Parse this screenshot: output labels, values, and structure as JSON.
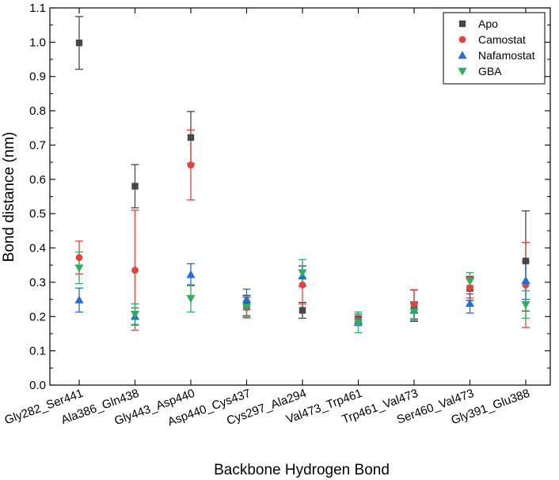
{
  "chart_data": {
    "type": "scatter",
    "title": "",
    "xlabel": "Backbone Hydrogen Bond",
    "ylabel": "Bond distance (nm)",
    "ylim": [
      0.0,
      1.1
    ],
    "yticks": [
      "0.0",
      "0.1",
      "0.2",
      "0.3",
      "0.4",
      "0.5",
      "0.6",
      "0.7",
      "0.8",
      "0.9",
      "1.0",
      "1.1"
    ],
    "categories": [
      "Gly282_Ser441",
      "Ala386_Gln438",
      "Gly443_Asp440",
      "Asp440_Cys437",
      "Cys297_Ala294",
      "Val473_Trp461",
      "Trp461_Val473",
      "Ser460_Val473",
      "Gly391_Glu388"
    ],
    "legend_position": "top-right",
    "series": [
      {
        "name": "Apo",
        "marker": "square",
        "color": "#474747",
        "values": [
          0.998,
          0.58,
          0.722,
          0.232,
          0.218,
          0.193,
          0.232,
          0.282,
          0.362
        ],
        "errors": [
          0.077,
          0.063,
          0.076,
          0.03,
          0.023,
          0.014,
          0.046,
          0.035,
          0.146
        ]
      },
      {
        "name": "Camostat",
        "marker": "circle",
        "color": "#e8413c",
        "values": [
          0.372,
          0.335,
          0.642,
          0.226,
          0.292,
          0.19,
          0.235,
          0.284,
          0.292
        ],
        "errors": [
          0.048,
          0.175,
          0.102,
          0.03,
          0.055,
          0.016,
          0.042,
          0.03,
          0.124
        ]
      },
      {
        "name": "Nafamostat",
        "marker": "triangle-up",
        "color": "#1e6fd6",
        "values": [
          0.248,
          0.2,
          0.322,
          0.25,
          0.318,
          0.186,
          0.218,
          0.238,
          0.305
        ],
        "errors": [
          0.035,
          0.025,
          0.032,
          0.03,
          0.03,
          0.012,
          0.025,
          0.028,
          0.055
        ]
      },
      {
        "name": "GBA",
        "marker": "triangle-down",
        "color": "#2ab05c",
        "values": [
          0.342,
          0.207,
          0.253,
          0.228,
          0.328,
          0.183,
          0.214,
          0.303,
          0.235
        ],
        "errors": [
          0.046,
          0.03,
          0.04,
          0.03,
          0.038,
          0.03,
          0.025,
          0.025,
          0.04
        ]
      }
    ]
  }
}
